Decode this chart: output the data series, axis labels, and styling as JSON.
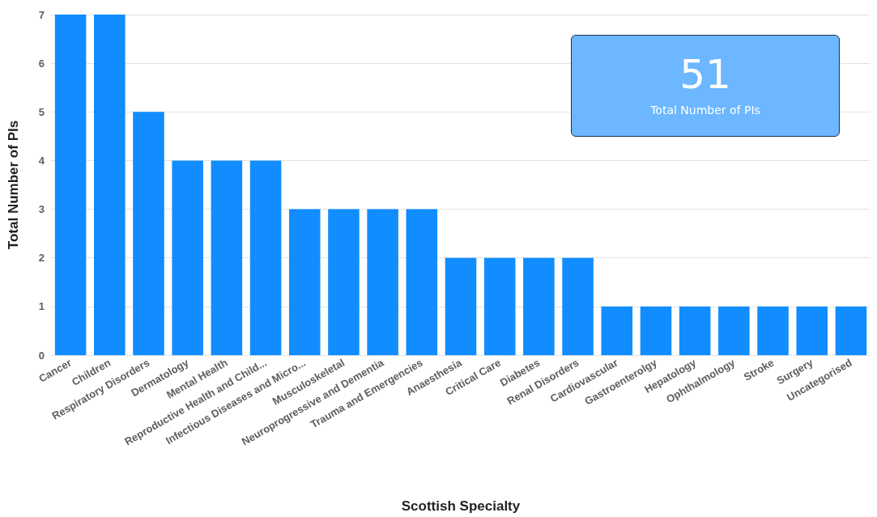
{
  "chart_data": [
    {
      "type": "bar",
      "xlabel": "Scottish Specialty",
      "ylabel": "Total Number of PIs",
      "categories": [
        "Cancer",
        "Children",
        "Respiratory Disorders",
        "Dermatology",
        "Mental Health",
        "Reproductive Health and Child...",
        "Infectious Diseases and Micro...",
        "Musculoskeletal",
        "Neuroprogressive and Dementia",
        "Trauma and Emergencies",
        "Anaesthesia",
        "Critical Care",
        "Diabetes",
        "Renal Disorders",
        "Cardiovascular",
        "Gastroenterolgy",
        "Hepatology",
        "Ophthalmology",
        "Stroke",
        "Surgery",
        "Uncategorised"
      ],
      "values": [
        7,
        7,
        5,
        4,
        4,
        4,
        3,
        3,
        3,
        3,
        2,
        2,
        2,
        2,
        1,
        1,
        1,
        1,
        1,
        1,
        1
      ],
      "color": "#118dff",
      "ylim": [
        0,
        7
      ],
      "yticks": [
        0,
        1,
        2,
        3,
        4,
        5,
        6,
        7
      ],
      "grid": "y"
    },
    {
      "type": "other",
      "categories": [
        "Total Number of PIs"
      ],
      "values": [
        51
      ],
      "data_labels": true,
      "color": "#6cb7ff"
    }
  ]
}
